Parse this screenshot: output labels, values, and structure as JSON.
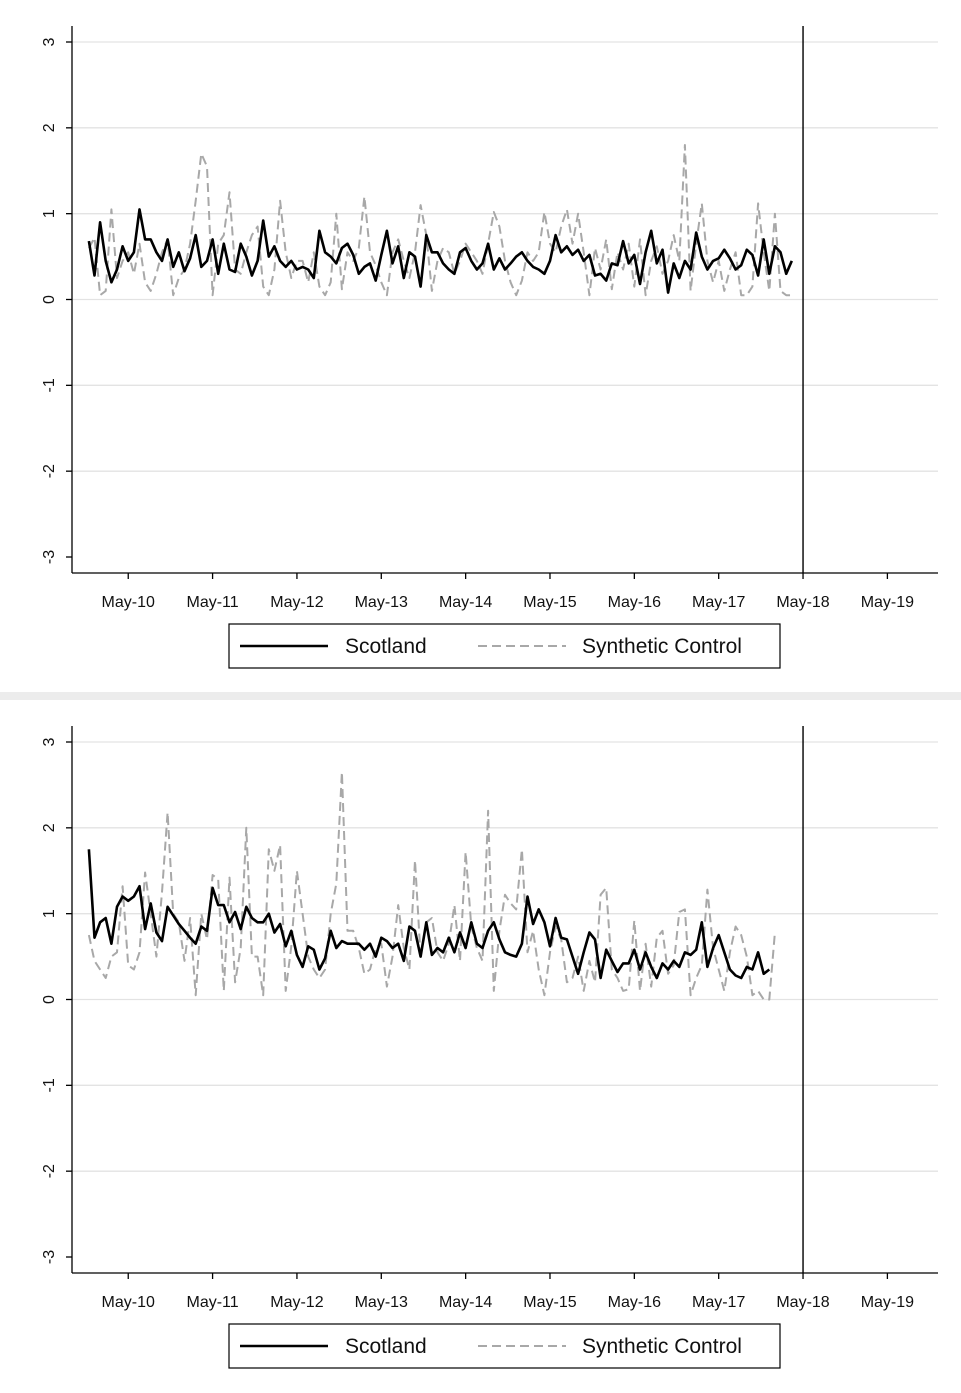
{
  "colors": {
    "scotland": "#000000",
    "synthetic": "#a8a8a8",
    "grid": "#e3e3e3",
    "axis": "#000000",
    "background": "#ffffff",
    "separator": "#ececec"
  },
  "chart_data": [
    {
      "type": "line",
      "title": "",
      "xlabel": "",
      "ylabel": "",
      "ylim": [
        -3,
        3
      ],
      "yticks": [
        -3,
        -2,
        -1,
        0,
        1,
        2,
        3
      ],
      "xlim": [
        1,
        155
      ],
      "xticks": [
        {
          "label": "May-10",
          "x": 11
        },
        {
          "label": "May-11",
          "x": 26
        },
        {
          "label": "May-12",
          "x": 41
        },
        {
          "label": "May-13",
          "x": 56
        },
        {
          "label": "May-14",
          "x": 71
        },
        {
          "label": "May-15",
          "x": 86
        },
        {
          "label": "May-16",
          "x": 101
        },
        {
          "label": "May-17",
          "x": 116
        },
        {
          "label": "May-18",
          "x": 131
        },
        {
          "label": "May-19",
          "x": 146
        }
      ],
      "vline_x": 131,
      "grid": true,
      "legend_position": "bottom",
      "x_start": 4,
      "series": [
        {
          "name": "Scotland",
          "style": "solid",
          "values": [
            0.68,
            0.28,
            0.9,
            0.45,
            0.2,
            0.35,
            0.62,
            0.45,
            0.55,
            1.05,
            0.7,
            0.7,
            0.55,
            0.45,
            0.7,
            0.38,
            0.55,
            0.33,
            0.48,
            0.75,
            0.38,
            0.45,
            0.7,
            0.3,
            0.65,
            0.35,
            0.32,
            0.65,
            0.5,
            0.28,
            0.45,
            0.92,
            0.5,
            0.62,
            0.45,
            0.38,
            0.45,
            0.35,
            0.38,
            0.35,
            0.25,
            0.8,
            0.55,
            0.5,
            0.42,
            0.6,
            0.65,
            0.52,
            0.3,
            0.38,
            0.42,
            0.22,
            0.52,
            0.8,
            0.42,
            0.62,
            0.25,
            0.55,
            0.5,
            0.15,
            0.75,
            0.55,
            0.55,
            0.42,
            0.35,
            0.3,
            0.55,
            0.6,
            0.45,
            0.35,
            0.42,
            0.65,
            0.35,
            0.48,
            0.35,
            0.42,
            0.5,
            0.55,
            0.45,
            0.38,
            0.35,
            0.3,
            0.45,
            0.75,
            0.55,
            0.62,
            0.52,
            0.58,
            0.45,
            0.52,
            0.28,
            0.3,
            0.22,
            0.42,
            0.4,
            0.68,
            0.42,
            0.52,
            0.18,
            0.55,
            0.8,
            0.42,
            0.58,
            0.08,
            0.42,
            0.25,
            0.45,
            0.35,
            0.78,
            0.5,
            0.35,
            0.45,
            0.48,
            0.58,
            0.48,
            0.35,
            0.4,
            0.58,
            0.52,
            0.28,
            0.7,
            0.3,
            0.62,
            0.55,
            0.3,
            0.45
          ]
        },
        {
          "name": "Synthetic Control",
          "style": "dashed",
          "values": [
            0.6,
            0.72,
            0.05,
            0.1,
            1.05,
            0.25,
            0.45,
            0.55,
            0.3,
            0.65,
            0.2,
            0.1,
            0.3,
            0.55,
            0.7,
            0.05,
            0.25,
            0.35,
            0.65,
            1.15,
            1.7,
            1.55,
            0.05,
            0.65,
            0.75,
            1.25,
            0.35,
            0.3,
            0.55,
            0.75,
            0.85,
            0.15,
            0.05,
            0.35,
            1.15,
            0.55,
            0.25,
            0.45,
            0.45,
            0.2,
            0.55,
            0.15,
            0.05,
            0.2,
            1.0,
            0.12,
            0.55,
            0.45,
            0.6,
            1.2,
            0.55,
            0.4,
            0.2,
            0.05,
            0.55,
            0.7,
            0.45,
            0.25,
            0.55,
            1.1,
            0.75,
            0.1,
            0.45,
            0.6,
            0.55,
            0.3,
            0.45,
            0.65,
            0.55,
            0.45,
            0.3,
            0.65,
            1.02,
            0.85,
            0.45,
            0.2,
            0.05,
            0.22,
            0.55,
            0.45,
            0.55,
            1.02,
            0.65,
            0.55,
            0.85,
            1.05,
            0.65,
            1.0,
            0.55,
            0.05,
            0.6,
            0.35,
            0.7,
            0.12,
            0.55,
            0.35,
            0.65,
            0.15,
            0.7,
            0.05,
            0.45,
            0.62,
            0.3,
            0.45,
            0.75,
            0.45,
            1.8,
            0.1,
            0.65,
            1.12,
            0.45,
            0.2,
            0.45,
            0.1,
            0.35,
            0.55,
            0.05,
            0.05,
            0.15,
            1.12,
            0.55,
            0.1,
            1.0,
            0.1,
            0.05,
            0.05
          ]
        }
      ]
    },
    {
      "type": "line",
      "title": "",
      "xlabel": "",
      "ylabel": "",
      "ylim": [
        -3,
        3
      ],
      "yticks": [
        -3,
        -2,
        -1,
        0,
        1,
        2,
        3
      ],
      "xlim": [
        1,
        155
      ],
      "xticks": [
        {
          "label": "May-10",
          "x": 11
        },
        {
          "label": "May-11",
          "x": 26
        },
        {
          "label": "May-12",
          "x": 41
        },
        {
          "label": "May-13",
          "x": 56
        },
        {
          "label": "May-14",
          "x": 71
        },
        {
          "label": "May-15",
          "x": 86
        },
        {
          "label": "May-16",
          "x": 101
        },
        {
          "label": "May-17",
          "x": 116
        },
        {
          "label": "May-18",
          "x": 131
        },
        {
          "label": "May-19",
          "x": 146
        }
      ],
      "vline_x": 131,
      "grid": true,
      "legend_position": "bottom",
      "x_start": 4,
      "series": [
        {
          "name": "Scotland",
          "style": "solid",
          "values": [
            1.75,
            0.72,
            0.9,
            0.95,
            0.65,
            1.08,
            1.2,
            1.15,
            1.2,
            1.32,
            0.82,
            1.12,
            0.78,
            0.68,
            1.08,
            0.98,
            0.88,
            0.8,
            0.72,
            0.65,
            0.85,
            0.8,
            1.3,
            1.1,
            1.1,
            0.9,
            1.02,
            0.82,
            1.08,
            0.95,
            0.9,
            0.9,
            1.0,
            0.78,
            0.88,
            0.62,
            0.8,
            0.52,
            0.38,
            0.62,
            0.58,
            0.35,
            0.48,
            0.8,
            0.6,
            0.68,
            0.65,
            0.65,
            0.65,
            0.58,
            0.65,
            0.5,
            0.72,
            0.68,
            0.6,
            0.65,
            0.45,
            0.85,
            0.8,
            0.5,
            0.9,
            0.52,
            0.6,
            0.55,
            0.72,
            0.55,
            0.78,
            0.6,
            0.9,
            0.65,
            0.6,
            0.8,
            0.9,
            0.7,
            0.55,
            0.52,
            0.5,
            0.65,
            1.2,
            0.88,
            1.05,
            0.9,
            0.62,
            0.95,
            0.72,
            0.7,
            0.5,
            0.3,
            0.55,
            0.78,
            0.7,
            0.25,
            0.58,
            0.45,
            0.32,
            0.42,
            0.42,
            0.58,
            0.35,
            0.55,
            0.38,
            0.25,
            0.42,
            0.35,
            0.45,
            0.38,
            0.55,
            0.52,
            0.58,
            0.9,
            0.38,
            0.6,
            0.75,
            0.55,
            0.35,
            0.28,
            0.25,
            0.38,
            0.35,
            0.55,
            0.3,
            0.35
          ]
        },
        {
          "name": "Synthetic Control",
          "style": "dashed",
          "values": [
            0.75,
            0.45,
            0.35,
            0.25,
            0.5,
            0.55,
            1.32,
            0.4,
            0.35,
            0.55,
            1.48,
            1.0,
            0.5,
            1.25,
            2.18,
            1.0,
            0.9,
            0.45,
            0.95,
            0.05,
            1.0,
            0.7,
            1.45,
            1.4,
            0.1,
            1.42,
            0.2,
            0.6,
            2.0,
            0.5,
            0.5,
            0.05,
            1.75,
            1.5,
            1.8,
            0.1,
            0.62,
            1.5,
            1.0,
            0.5,
            0.35,
            0.25,
            0.35,
            1.0,
            1.35,
            2.65,
            0.8,
            0.8,
            0.6,
            0.3,
            0.35,
            0.6,
            0.65,
            0.15,
            0.5,
            1.1,
            0.6,
            0.35,
            1.62,
            0.5,
            0.9,
            0.95,
            0.55,
            0.45,
            0.65,
            1.1,
            0.45,
            1.72,
            0.85,
            0.6,
            0.45,
            2.2,
            0.1,
            0.8,
            1.22,
            1.12,
            1.05,
            1.75,
            0.55,
            0.8,
            0.35,
            0.05,
            0.55,
            0.85,
            0.7,
            0.2,
            0.25,
            0.5,
            0.1,
            0.45,
            0.2,
            1.22,
            1.3,
            0.35,
            0.25,
            0.1,
            0.12,
            0.92,
            0.1,
            0.65,
            0.15,
            0.72,
            0.8,
            0.3,
            0.4,
            1.02,
            1.05,
            0.05,
            0.25,
            0.4,
            1.28,
            0.6,
            0.35,
            0.1,
            0.55,
            0.85,
            0.75,
            0.5,
            0.05,
            0.1,
            0.0,
            0.0,
            0.78
          ]
        }
      ]
    }
  ]
}
